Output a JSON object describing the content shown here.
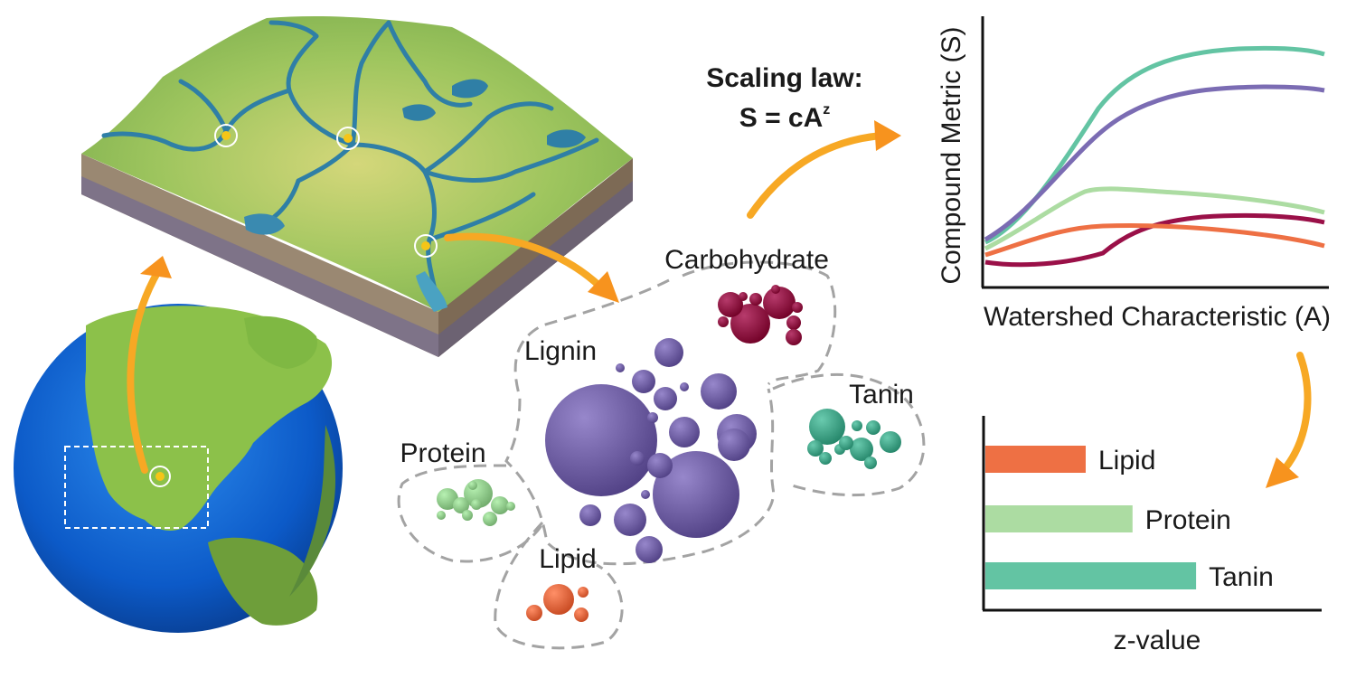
{
  "equation": {
    "line1": "Scaling law:",
    "line2": "S = cA",
    "exponent": "z"
  },
  "compound_groups": [
    {
      "key": "carbohydrate",
      "label": "Carbohydrate",
      "color": "#8a0e3f"
    },
    {
      "key": "lignin",
      "label": "Lignin",
      "color": "#6a5a9e"
    },
    {
      "key": "tanin",
      "label": "Tanin",
      "color": "#3d9e82"
    },
    {
      "key": "protein",
      "label": "Protein",
      "color": "#8ac485"
    },
    {
      "key": "lipid",
      "label": "Lipid",
      "color": "#e0623a"
    }
  ],
  "line_chart": {
    "ylabel": "Compound Metric (S)",
    "xlabel": "Watershed Characteristic (A)",
    "series_colors": [
      "#63c4a3",
      "#7b6cb3",
      "#acdca2",
      "#9a1048",
      "#ee7044"
    ]
  },
  "chart_data": {
    "type": "bar",
    "orientation": "horizontal",
    "categories": [
      "Lipid",
      "Protein",
      "Tanin"
    ],
    "values": [
      0.3,
      0.44,
      0.63
    ],
    "xlabel": "z-value",
    "colors": [
      "#ee7044",
      "#acdca2",
      "#63c4a3"
    ]
  }
}
